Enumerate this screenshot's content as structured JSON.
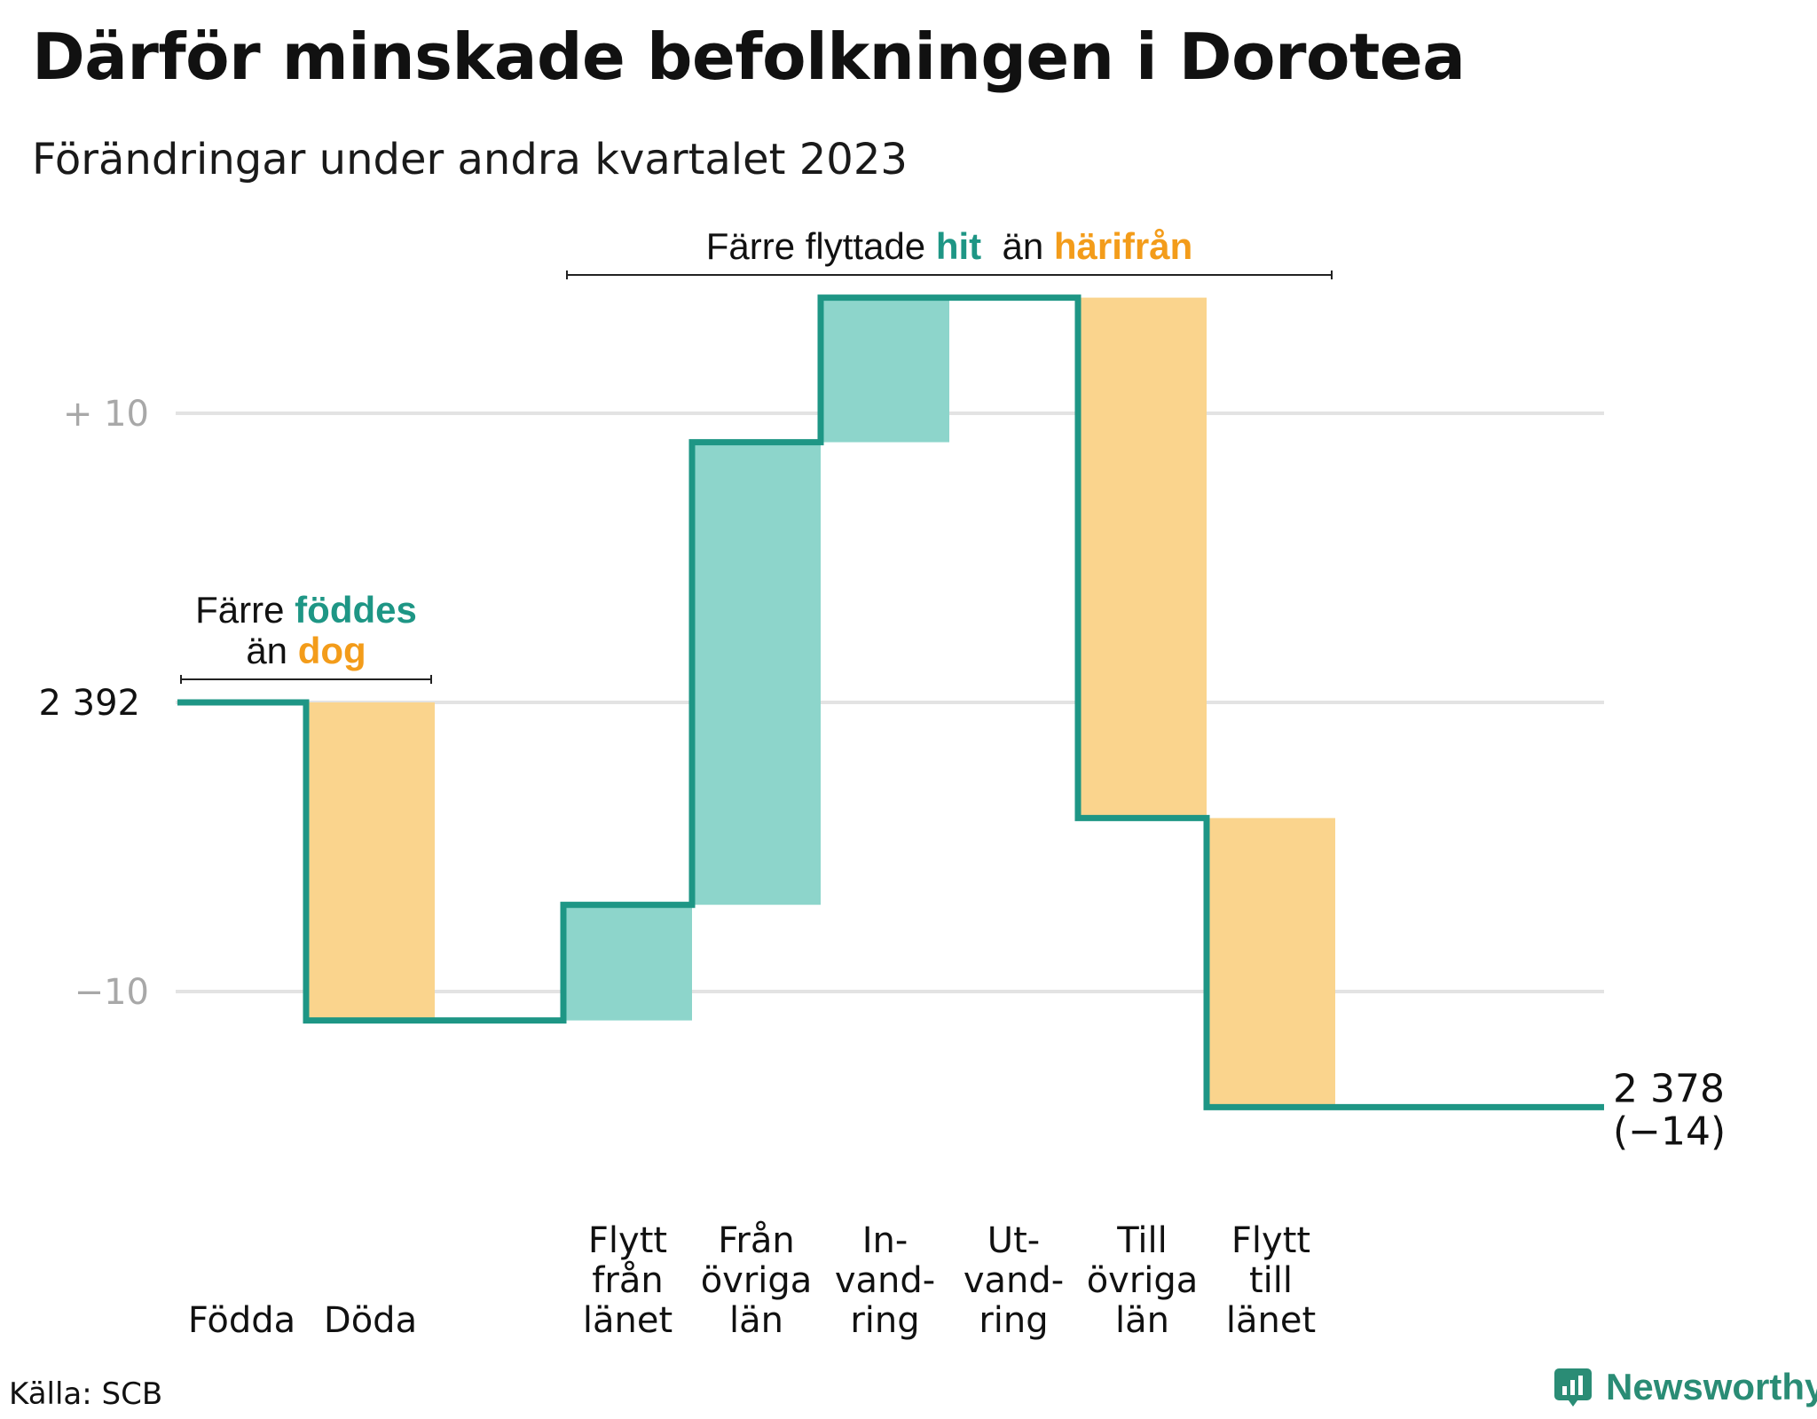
{
  "title": "Därför minskade befolkningen i Dorotea",
  "subtitle": "Förändringar under andra kvartalet 2023",
  "source": "Källa: SCB",
  "brand": {
    "name": "Newsworthy",
    "icon": "newsworthy-logo-icon"
  },
  "colors": {
    "line": "#1e9685",
    "increase": "#8dd5cb",
    "decrease": "#fad48d",
    "accent_teal": "#1e9685",
    "accent_orange": "#f39c1a",
    "grid": "#e3e3e3",
    "tick_text": "#a8a8a8"
  },
  "chart_data": {
    "type": "waterfall",
    "start_value": 2392,
    "start_label": "2 392",
    "end_value": 2378,
    "end_label": "2 378",
    "end_change_label": "(−14)",
    "baseline": "2 392",
    "ylim": [
      -21,
      21
    ],
    "yticks": [
      {
        "value": 10,
        "label": "+  10"
      },
      {
        "value": 0,
        "label": "2  392"
      },
      {
        "value": -10,
        "label": "−10"
      }
    ],
    "grid": true,
    "categories": [
      {
        "label": [
          "Födda"
        ],
        "change": 0
      },
      {
        "label": [
          "Döda"
        ],
        "change": -11
      },
      {
        "label": [],
        "change": 0
      },
      {
        "label": [
          "Flytt",
          "från",
          "länet"
        ],
        "change": 4
      },
      {
        "label": [
          "Från",
          "övriga",
          "län"
        ],
        "change": 16
      },
      {
        "label": [
          "In-",
          "vand-",
          "ring"
        ],
        "change": 5
      },
      {
        "label": [
          "Ut-",
          "vand-",
          "ring"
        ],
        "change": 0
      },
      {
        "label": [
          "Till",
          "övriga",
          "län"
        ],
        "change": -18
      },
      {
        "label": [
          "Flytt",
          "till",
          "länet"
        ],
        "change": -10
      }
    ],
    "annotations": [
      {
        "lines": [
          [
            {
              "text": "Färre ",
              "color": "dark"
            },
            {
              "text": "föddes",
              "color": "teal"
            }
          ],
          [
            {
              "text": "än ",
              "color": "dark"
            },
            {
              "text": "dog",
              "color": "orange"
            }
          ]
        ],
        "from": 0,
        "to": 1
      },
      {
        "lines": [
          [
            {
              "text": "Färre flyttade ",
              "color": "dark"
            },
            {
              "text": "hit",
              "color": "teal"
            },
            {
              "text": "  än ",
              "color": "dark"
            },
            {
              "text": "härifrån",
              "color": "orange"
            }
          ]
        ],
        "from": 3,
        "to": 8
      }
    ]
  }
}
